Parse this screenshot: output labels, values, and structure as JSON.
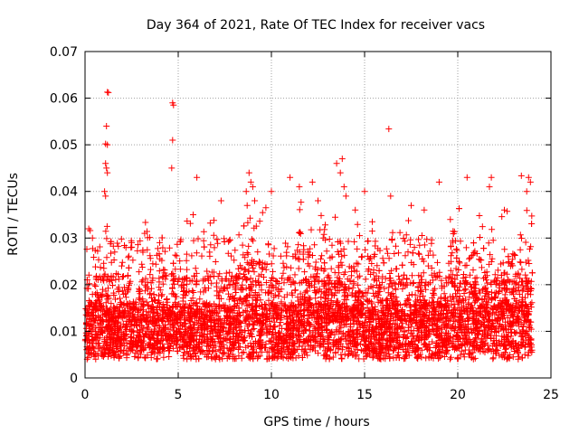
{
  "chart_data": {
    "type": "scatter",
    "title": "Day 364 of 2021, Rate Of TEC Index for receiver vacs",
    "xlabel": "GPS time / hours",
    "ylabel": "ROTI / TECUs",
    "xlim": [
      0,
      25
    ],
    "ylim": [
      0,
      0.07
    ],
    "xticks": [
      0,
      5,
      10,
      15,
      20,
      25
    ],
    "yticks": [
      0,
      0.01,
      0.02,
      0.03,
      0.04,
      0.05,
      0.06,
      0.07
    ],
    "xtick_labels": [
      "0",
      "5",
      "10",
      "15",
      "20",
      "25"
    ],
    "ytick_labels": [
      "0",
      "0.01",
      "0.02",
      "0.03",
      "0.04",
      "0.05",
      "0.06",
      "0.07"
    ],
    "grid": true,
    "marker": "plus",
    "color": "#ff0000",
    "series": [
      {
        "name": "",
        "x_range": [
          0,
          24
        ],
        "points": [
          [
            1.2,
            0.0613
          ],
          [
            1.25,
            0.0612
          ],
          [
            1.15,
            0.054
          ],
          [
            1.1,
            0.0502
          ],
          [
            1.2,
            0.05
          ],
          [
            1.1,
            0.046
          ],
          [
            1.15,
            0.045
          ],
          [
            1.05,
            0.04
          ],
          [
            1.1,
            0.039
          ],
          [
            1.2,
            0.044
          ],
          [
            4.7,
            0.059
          ],
          [
            4.75,
            0.0585
          ],
          [
            4.7,
            0.051
          ],
          [
            4.65,
            0.045
          ],
          [
            16.3,
            0.0534
          ],
          [
            16.4,
            0.039
          ],
          [
            8.8,
            0.044
          ],
          [
            8.9,
            0.042
          ],
          [
            9.0,
            0.041
          ],
          [
            9.1,
            0.038
          ],
          [
            8.7,
            0.037
          ],
          [
            13.8,
            0.047
          ],
          [
            13.5,
            0.046
          ],
          [
            13.7,
            0.044
          ],
          [
            13.9,
            0.041
          ],
          [
            14.0,
            0.039
          ],
          [
            11.0,
            0.043
          ],
          [
            11.5,
            0.041
          ],
          [
            10.0,
            0.04
          ],
          [
            12.2,
            0.042
          ],
          [
            15.0,
            0.04
          ],
          [
            19.0,
            0.042
          ],
          [
            20.5,
            0.043
          ],
          [
            21.8,
            0.043
          ],
          [
            21.7,
            0.041
          ],
          [
            23.8,
            0.043
          ],
          [
            23.9,
            0.042
          ],
          [
            23.7,
            0.04
          ],
          [
            6.0,
            0.043
          ],
          [
            7.3,
            0.038
          ],
          [
            17.5,
            0.037
          ],
          [
            18.2,
            0.036
          ],
          [
            22.5,
            0.036
          ],
          [
            3.2,
            0.031
          ],
          [
            2.5,
            0.029
          ],
          [
            0.2,
            0.032
          ],
          [
            0.4,
            0.03
          ],
          [
            5.8,
            0.035
          ],
          [
            12.5,
            0.038
          ],
          [
            14.5,
            0.036
          ],
          [
            19.6,
            0.034
          ]
        ]
      }
    ]
  }
}
